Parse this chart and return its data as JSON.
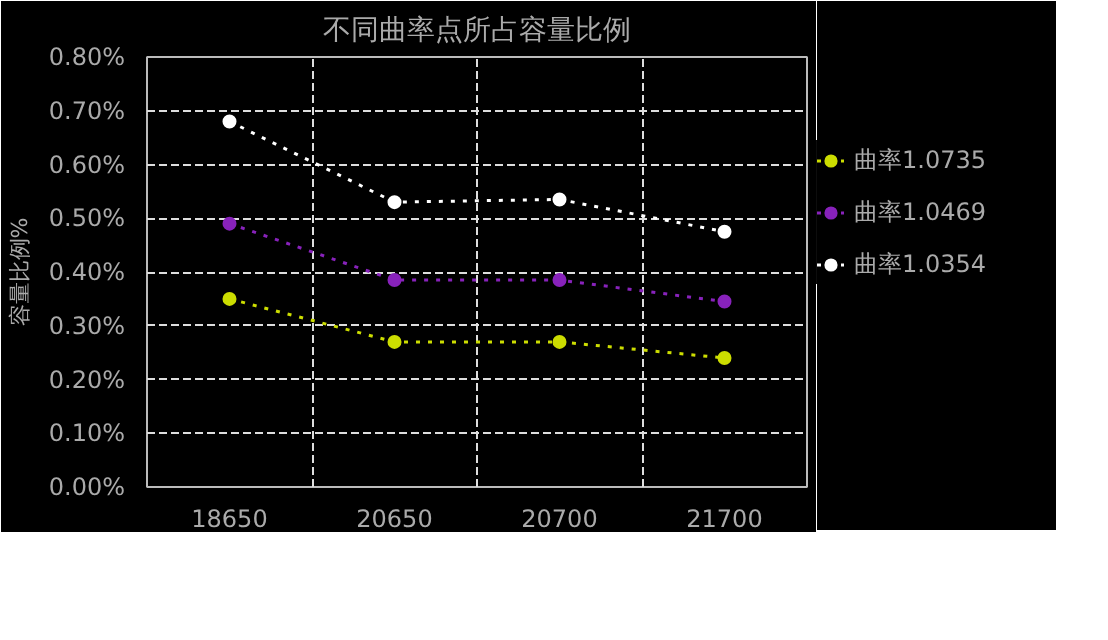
{
  "chart_data": {
    "type": "line",
    "title": "不同曲率点所占容量比例",
    "ylabel": "容量比例%",
    "categories": [
      "18650",
      "20650",
      "20700",
      "21700"
    ],
    "series": [
      {
        "name": "曲率1.0735",
        "color": "#ccdd00",
        "values": [
          0.35,
          0.27,
          0.27,
          0.24
        ]
      },
      {
        "name": "曲率1.0469",
        "color": "#8822bb",
        "values": [
          0.49,
          0.385,
          0.385,
          0.345
        ]
      },
      {
        "name": "曲率1.0354",
        "color": "#ffffff",
        "values": [
          0.68,
          0.53,
          0.535,
          0.475
        ]
      }
    ],
    "ylim": [
      0,
      0.8
    ],
    "yticks": [
      {
        "value": 0,
        "label": "0.00%"
      },
      {
        "value": 0.1,
        "label": "0.10%"
      },
      {
        "value": 0.2,
        "label": "0.20%"
      },
      {
        "value": 0.3,
        "label": "0.30%"
      },
      {
        "value": 0.4,
        "label": "0.40%"
      },
      {
        "value": 0.5,
        "label": "0.50%"
      },
      {
        "value": 0.6,
        "label": "0.60%"
      },
      {
        "value": 0.7,
        "label": "0.70%"
      },
      {
        "value": 0.8,
        "label": "0.80%"
      }
    ],
    "grid": true,
    "legend": "right",
    "marker": "circle",
    "line_style": "dotted"
  }
}
